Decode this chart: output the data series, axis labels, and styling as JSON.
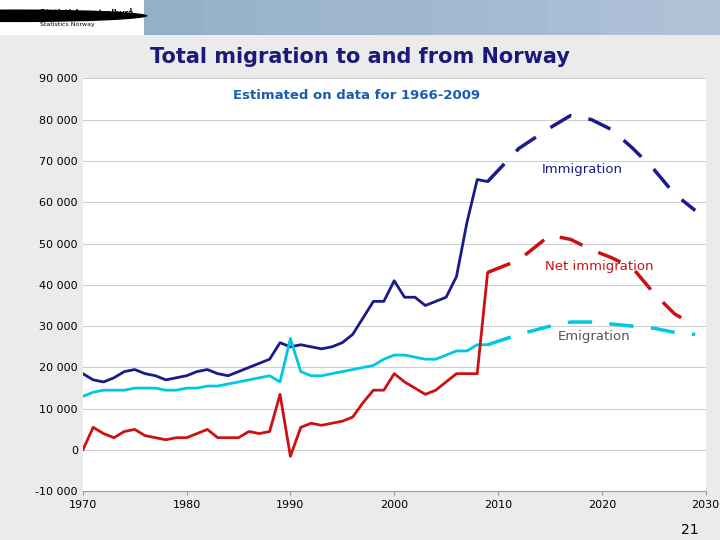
{
  "title": "Total migration to and from Norway",
  "subtitle": "Estimated on data for 1966-2009",
  "title_color": "#1a1a7a",
  "subtitle_color": "#1a5cb0",
  "page_bg_color": "#ebebeb",
  "plot_bg_color": "#ffffff",
  "ylim": [
    -10000,
    90000
  ],
  "xlim": [
    1970,
    2030
  ],
  "yticks": [
    -10000,
    0,
    10000,
    20000,
    30000,
    40000,
    50000,
    60000,
    70000,
    80000,
    90000
  ],
  "ytick_labels": [
    "-10 000",
    "0",
    "10 000",
    "20 000",
    "30 000",
    "40 000",
    "50 000",
    "60 000",
    "70 000",
    "80 000",
    "90 000"
  ],
  "xticks": [
    1970,
    1980,
    1990,
    2000,
    2010,
    2020,
    2030
  ],
  "immigration_solid_years": [
    1970,
    1971,
    1972,
    1973,
    1974,
    1975,
    1976,
    1977,
    1978,
    1979,
    1980,
    1981,
    1982,
    1983,
    1984,
    1985,
    1986,
    1987,
    1988,
    1989,
    1990,
    1991,
    1992,
    1993,
    1994,
    1995,
    1996,
    1997,
    1998,
    1999,
    2000,
    2001,
    2002,
    2003,
    2004,
    2005,
    2006,
    2007,
    2008,
    2009
  ],
  "immigration_solid_values": [
    18500,
    17000,
    16500,
    17500,
    19000,
    19500,
    18500,
    18000,
    17000,
    17500,
    18000,
    19000,
    19500,
    18500,
    18000,
    19000,
    20000,
    21000,
    22000,
    26000,
    25000,
    25500,
    25000,
    24500,
    25000,
    26000,
    28000,
    32000,
    36000,
    36000,
    41000,
    37000,
    37000,
    35000,
    36000,
    37000,
    42000,
    55000,
    65500,
    65000
  ],
  "immigration_dashed_years": [
    2009,
    2012,
    2015,
    2017,
    2019,
    2021,
    2023,
    2025,
    2027,
    2029
  ],
  "immigration_dashed_values": [
    65000,
    73000,
    78000,
    81000,
    80000,
    77500,
    73000,
    68000,
    62000,
    58000
  ],
  "emigration_solid_years": [
    1970,
    1971,
    1972,
    1973,
    1974,
    1975,
    1976,
    1977,
    1978,
    1979,
    1980,
    1981,
    1982,
    1983,
    1984,
    1985,
    1986,
    1987,
    1988,
    1989,
    1990,
    1991,
    1992,
    1993,
    1994,
    1995,
    1996,
    1997,
    1998,
    1999,
    2000,
    2001,
    2002,
    2003,
    2004,
    2005,
    2006,
    2007,
    2008,
    2009
  ],
  "emigration_solid_values": [
    13000,
    14000,
    14500,
    14500,
    14500,
    15000,
    15000,
    15000,
    14500,
    14500,
    15000,
    15000,
    15500,
    15500,
    16000,
    16500,
    17000,
    17500,
    18000,
    16500,
    27000,
    19000,
    18000,
    18000,
    18500,
    19000,
    19500,
    20000,
    20500,
    22000,
    23000,
    23000,
    22500,
    22000,
    22000,
    23000,
    24000,
    24000,
    25500,
    25500
  ],
  "emigration_dashed_years": [
    2009,
    2012,
    2015,
    2017,
    2019,
    2021,
    2023,
    2025,
    2027,
    2029
  ],
  "emigration_dashed_values": [
    25500,
    28000,
    30000,
    31000,
    31000,
    30500,
    30000,
    29500,
    28500,
    28000
  ],
  "net_solid_years": [
    1970,
    1971,
    1972,
    1973,
    1974,
    1975,
    1976,
    1977,
    1978,
    1979,
    1980,
    1981,
    1982,
    1983,
    1984,
    1985,
    1986,
    1987,
    1988,
    1989,
    1990,
    1991,
    1992,
    1993,
    1994,
    1995,
    1996,
    1997,
    1998,
    1999,
    2000,
    2001,
    2002,
    2003,
    2004,
    2005,
    2006,
    2007,
    2008,
    2009
  ],
  "net_solid_values": [
    0,
    5500,
    4000,
    3000,
    4500,
    5000,
    3500,
    3000,
    2500,
    3000,
    3000,
    4000,
    5000,
    3000,
    3000,
    3000,
    4500,
    4000,
    4500,
    13500,
    -1500,
    5500,
    6500,
    6000,
    6500,
    7000,
    8000,
    11500,
    14500,
    14500,
    18500,
    16500,
    15000,
    13500,
    14500,
    16500,
    18500,
    18500,
    18500,
    43000
  ],
  "net_dashed_years": [
    2009,
    2012,
    2015,
    2017,
    2019,
    2021,
    2023,
    2025,
    2027,
    2029
  ],
  "net_dashed_values": [
    43000,
    46000,
    52000,
    51000,
    48500,
    46500,
    44000,
    38000,
    33000,
    30000
  ],
  "immigration_color": "#1a1a8c",
  "emigration_color": "#00c8e0",
  "net_color": "#cc1111",
  "label_immigration": "Immigration",
  "label_emigration": "Emigration",
  "label_net": "Net immigration",
  "footnote": "21"
}
